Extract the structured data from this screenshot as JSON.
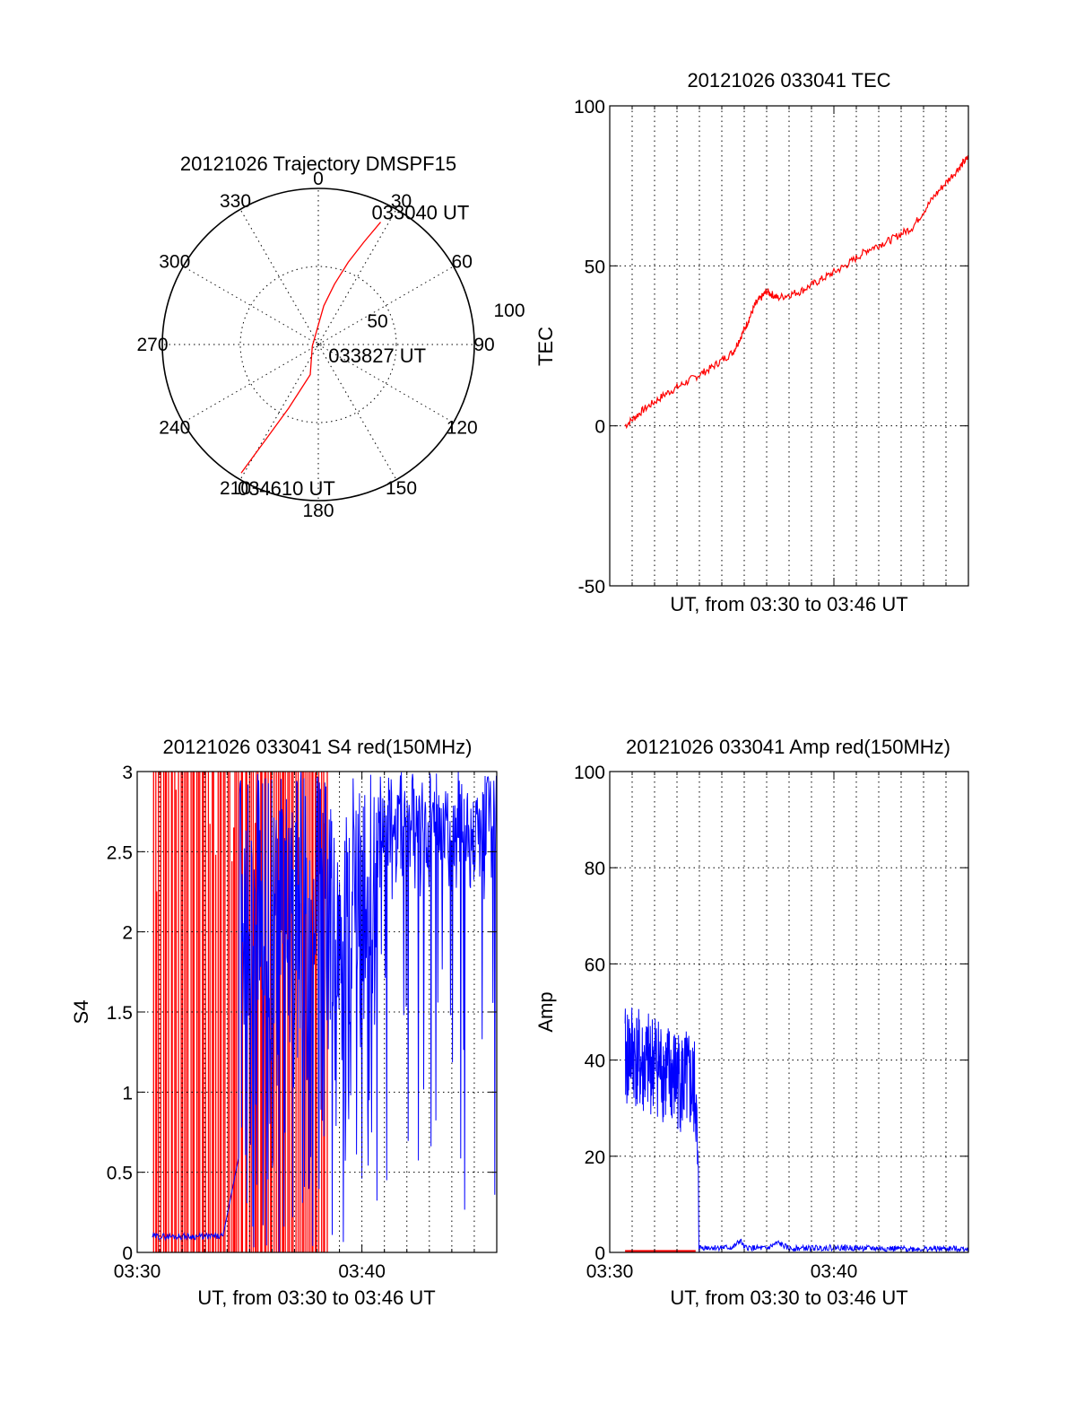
{
  "chart_data": [
    {
      "id": "trajectory",
      "type": "polar",
      "title": "20121026 Trajectory DMSPF15",
      "angle_labels": [
        "0",
        "30",
        "60",
        "90",
        "120",
        "150",
        "180",
        "210",
        "240",
        "270",
        "300",
        "330"
      ],
      "radial_labels": [
        "50",
        "100"
      ],
      "rlim": [
        0,
        100
      ],
      "grid": true,
      "series": [
        {
          "color": "#ff0000",
          "points": [
            {
              "az": 27,
              "r": 88
            },
            {
              "az": 24,
              "r": 72
            },
            {
              "az": 20,
              "r": 56
            },
            {
              "az": 15,
              "r": 40
            },
            {
              "az": 8,
              "r": 25
            },
            {
              "az": 255,
              "r": 4
            },
            {
              "az": 195,
              "r": 20
            },
            {
              "az": 205,
              "r": 45
            },
            {
              "az": 209,
              "r": 70
            },
            {
              "az": 211,
              "r": 96
            }
          ]
        }
      ],
      "annotations": [
        {
          "text": "033040 UT",
          "az": 27,
          "r": 88
        },
        {
          "text": "033827 UT",
          "az": 255,
          "r": 4
        },
        {
          "text": "034610 UT",
          "az": 211,
          "r": 96
        }
      ]
    },
    {
      "id": "tec",
      "type": "line",
      "title": "20121026 033041 TEC",
      "xlabel": "UT, from 03:30 to 03:46 UT",
      "ylabel": "TEC",
      "xlim": [
        "03:30",
        "03:46"
      ],
      "ylim": [
        -50,
        100
      ],
      "yticks": [
        -50,
        0,
        50,
        100
      ],
      "xgrid_interval_min": 1,
      "grid": true,
      "series": [
        {
          "color": "#ff0000",
          "x": [
            "03:30:41",
            "03:31:30",
            "03:32:30",
            "03:33:30",
            "03:34:30",
            "03:35:30",
            "03:36:00",
            "03:36:30",
            "03:37:00",
            "03:37:30",
            "03:38:30",
            "03:39:30",
            "03:40:30",
            "03:41:30",
            "03:42:30",
            "03:43:30",
            "03:44:30",
            "03:45:30",
            "03:46:00"
          ],
          "y": [
            0,
            5,
            10,
            14,
            18,
            23,
            30,
            38,
            42,
            40,
            42,
            46,
            50,
            55,
            58,
            62,
            72,
            80,
            84
          ]
        }
      ]
    },
    {
      "id": "s4",
      "type": "line",
      "title": "20121026 033041 S4 red(150MHz)",
      "xlabel": "UT, from 03:30 to 03:46 UT",
      "ylabel": "S4",
      "xlim": [
        "03:30",
        "03:46"
      ],
      "xticks": [
        "03:30",
        "03:40"
      ],
      "ylim": [
        0,
        3
      ],
      "yticks": [
        0,
        0.5,
        1,
        1.5,
        2,
        2.5,
        3
      ],
      "grid": true,
      "series": [
        {
          "color": "#ff0000",
          "x_range": [
            "03:30:41",
            "03:38:30"
          ],
          "y_range": [
            0,
            3
          ]
        },
        {
          "color": "#0000ff",
          "x_range": [
            "03:30:41",
            "03:46:00"
          ],
          "y_range": [
            0,
            3
          ]
        }
      ]
    },
    {
      "id": "amp",
      "type": "line",
      "title": "20121026 033041 Amp red(150MHz)",
      "xlabel": "UT, from 03:30 to 03:46 UT",
      "ylabel": "Amp",
      "xlim": [
        "03:30",
        "03:46"
      ],
      "xticks": [
        "03:30",
        "03:40"
      ],
      "ylim": [
        0,
        100
      ],
      "yticks": [
        0,
        20,
        40,
        60,
        80,
        100
      ],
      "grid": true,
      "series": [
        {
          "color": "#0000ff",
          "x": [
            "03:30:41",
            "03:31:00",
            "03:31:30",
            "03:32:00",
            "03:32:30",
            "03:33:00",
            "03:33:30",
            "03:33:50",
            "03:34:00",
            "03:35:00",
            "03:35:30",
            "03:35:50",
            "03:36:00",
            "03:37:00",
            "03:37:30",
            "03:38:00",
            "03:40:00",
            "03:42:00",
            "03:44:00",
            "03:46:00"
          ],
          "y": [
            40,
            42,
            38,
            40,
            37,
            36,
            35,
            33,
            1,
            1,
            1,
            2.5,
            1,
            0.8,
            2,
            0.8,
            1,
            0.8,
            0.7,
            0.8
          ]
        },
        {
          "color": "#ff0000",
          "x": [
            "03:30:41",
            "03:33:50"
          ],
          "y": [
            0.3,
            0.3
          ]
        }
      ]
    }
  ]
}
